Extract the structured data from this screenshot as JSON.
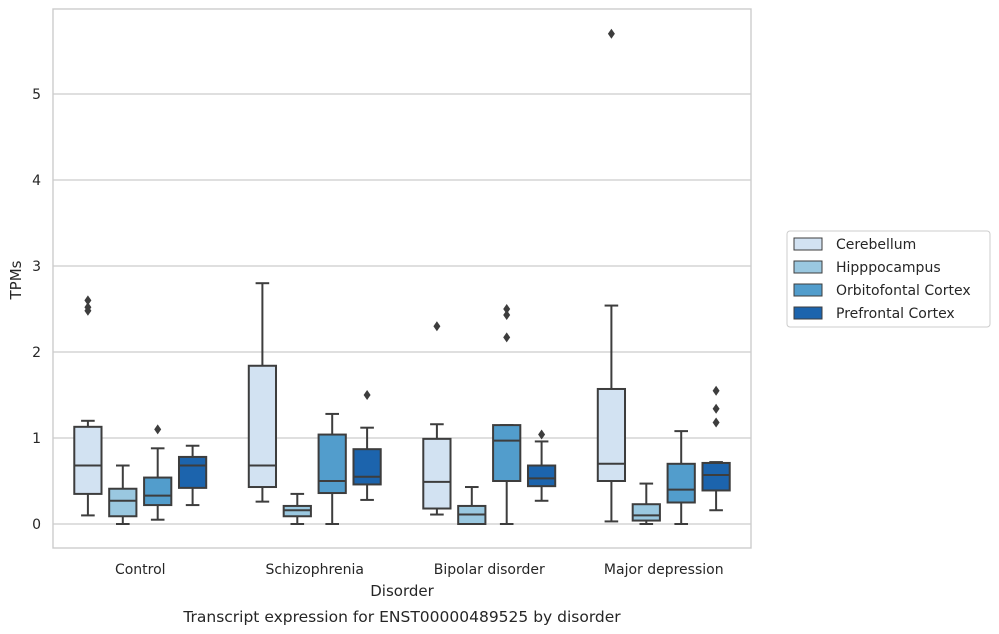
{
  "chart_data": {
    "type": "boxplot",
    "title": "",
    "caption": "Transcript expression for ENST00000489525 by disorder",
    "xlabel": "Disorder",
    "ylabel": "TPMs",
    "ylim": [
      -0.28,
      6.0
    ],
    "yticks": [
      0,
      1,
      2,
      3,
      4,
      5
    ],
    "grid": "horizontal",
    "legend_position": "right",
    "categories": [
      "Control",
      "Schizophrenia",
      "Bipolar disorder",
      "Major depression"
    ],
    "series": [
      {
        "name": "Cerebellum",
        "color": "#d2e2f2",
        "boxes": [
          {
            "whisker_low": 0.1,
            "q1": 0.35,
            "median": 0.68,
            "q3": 1.13,
            "whisker_high": 1.2,
            "outliers": [
              2.48,
              2.52,
              2.6
            ]
          },
          {
            "whisker_low": 0.26,
            "q1": 0.43,
            "median": 0.68,
            "q3": 1.84,
            "whisker_high": 2.8,
            "outliers": []
          },
          {
            "whisker_low": 0.11,
            "q1": 0.18,
            "median": 0.49,
            "q3": 0.99,
            "whisker_high": 1.16,
            "outliers": [
              2.3
            ]
          },
          {
            "whisker_low": 0.03,
            "q1": 0.5,
            "median": 0.7,
            "q3": 1.57,
            "whisker_high": 2.54,
            "outliers": [
              5.7
            ]
          }
        ]
      },
      {
        "name": "Hipppocampus",
        "color": "#9ac8e0",
        "boxes": [
          {
            "whisker_low": 0.0,
            "q1": 0.09,
            "median": 0.27,
            "q3": 0.41,
            "whisker_high": 0.68,
            "outliers": []
          },
          {
            "whisker_low": 0.0,
            "q1": 0.09,
            "median": 0.16,
            "q3": 0.21,
            "whisker_high": 0.35,
            "outliers": []
          },
          {
            "whisker_low": 0.0,
            "q1": 0.0,
            "median": 0.11,
            "q3": 0.21,
            "whisker_high": 0.43,
            "outliers": []
          },
          {
            "whisker_low": 0.0,
            "q1": 0.04,
            "median": 0.1,
            "q3": 0.23,
            "whisker_high": 0.47,
            "outliers": []
          }
        ]
      },
      {
        "name": "Orbitofontal Cortex",
        "color": "#529dcc",
        "boxes": [
          {
            "whisker_low": 0.05,
            "q1": 0.22,
            "median": 0.33,
            "q3": 0.54,
            "whisker_high": 0.88,
            "outliers": [
              1.1
            ]
          },
          {
            "whisker_low": 0.0,
            "q1": 0.36,
            "median": 0.5,
            "q3": 1.04,
            "whisker_high": 1.28,
            "outliers": []
          },
          {
            "whisker_low": 0.0,
            "q1": 0.5,
            "median": 0.97,
            "q3": 1.15,
            "whisker_high": 1.15,
            "outliers": [
              2.17,
              2.43,
              2.5
            ]
          },
          {
            "whisker_low": 0.0,
            "q1": 0.25,
            "median": 0.4,
            "q3": 0.7,
            "whisker_high": 1.08,
            "outliers": []
          }
        ]
      },
      {
        "name": "Prefrontal Cortex",
        "color": "#1c64ad",
        "boxes": [
          {
            "whisker_low": 0.22,
            "q1": 0.42,
            "median": 0.68,
            "q3": 0.78,
            "whisker_high": 0.91,
            "outliers": []
          },
          {
            "whisker_low": 0.28,
            "q1": 0.46,
            "median": 0.55,
            "q3": 0.87,
            "whisker_high": 1.12,
            "outliers": [
              1.5
            ]
          },
          {
            "whisker_low": 0.27,
            "q1": 0.44,
            "median": 0.53,
            "q3": 0.68,
            "whisker_high": 0.96,
            "outliers": [
              1.04
            ]
          },
          {
            "whisker_low": 0.16,
            "q1": 0.39,
            "median": 0.57,
            "q3": 0.71,
            "whisker_high": 0.72,
            "outliers": [
              1.18,
              1.34,
              1.55
            ]
          }
        ]
      }
    ]
  }
}
